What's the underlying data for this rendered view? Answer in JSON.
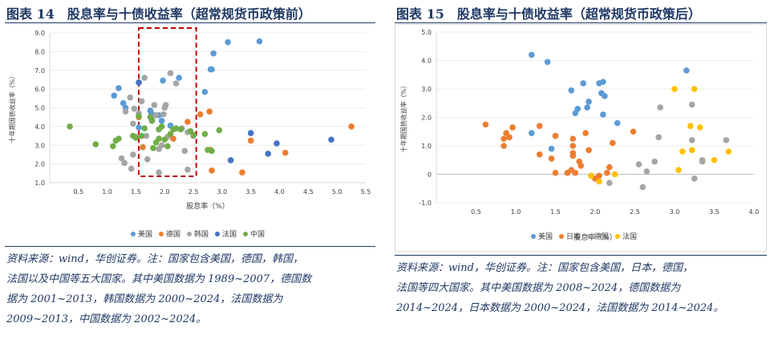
{
  "colors": {
    "us": "#5b9bd5",
    "de": "#ed7d31",
    "kr": "#a5a5a5",
    "fr": "#4472c4",
    "cn": "#70ad47",
    "jp": "#ed7d31",
    "fr2": "#ffc000",
    "title": "#1f3864",
    "dash": "#c00000"
  },
  "left": {
    "title": "图表 14　股息率与十债收益率（超常规货币政策前）",
    "source": [
      "资料来源：wind，华创证券。注：国家包含美国，德国，韩国，",
      "法国以及中国等五大国家。其中美国数据为 1989~2007，德国数",
      "据为 2001~2013，韩国数据为 2000~2024，法国数据为",
      "2009~2013，中国数据为 2002~2024。"
    ]
  },
  "right": {
    "title": "图表 15　股息率与十债收益率（超常规货币政策后）",
    "source": [
      "资料来源：wind，华创证券。注：国家包含美国，日本，德国，",
      "法国等四大国家。其中美国数据为 2008~2024，德国数据为",
      "2014~2024，日本数据为 2000~2024，法国数据为 2014~2024。"
    ]
  },
  "chart_data": [
    {
      "type": "scatter",
      "title": "股息率与十债收益率（超常规货币政策前）",
      "xlabel": "股息率（%）",
      "ylabel": "十年期国债收益率（%）",
      "xlim": [
        0,
        5.5
      ],
      "ylim": [
        1.0,
        9.0
      ],
      "xticks": [
        "0.5",
        "1.0",
        "1.5",
        "2.0",
        "2.5",
        "3.0",
        "3.5",
        "4.0",
        "4.5",
        "5.0",
        "5.5"
      ],
      "yticks": [
        "1.0",
        "2.0",
        "3.0",
        "4.0",
        "5.0",
        "6.0",
        "7.0",
        "8.0",
        "9.0"
      ],
      "highlight_range_x": [
        1.55,
        2.55
      ],
      "series": [
        {
          "name": "美国",
          "color": "#5b9bd5",
          "points": [
            [
              1.12,
              5.65
            ],
            [
              1.2,
              6.05
            ],
            [
              1.28,
              5.25
            ],
            [
              1.32,
              5.0
            ],
            [
              1.55,
              6.35
            ],
            [
              1.75,
              4.85
            ],
            [
              1.77,
              4.7
            ],
            [
              1.78,
              4.35
            ],
            [
              1.9,
              4.6
            ],
            [
              1.95,
              4.3
            ],
            [
              1.97,
              6.45
            ],
            [
              2.1,
              4.05
            ],
            [
              2.25,
              6.6
            ],
            [
              2.7,
              5.85
            ],
            [
              2.8,
              7.05
            ],
            [
              2.82,
              7.05
            ],
            [
              2.85,
              7.9
            ],
            [
              3.1,
              8.5
            ],
            [
              3.65,
              8.55
            ],
            [
              1.55,
              3.95
            ]
          ]
        },
        {
          "name": "德国",
          "color": "#ed7d31",
          "points": [
            [
              1.55,
              4.5
            ],
            [
              2.4,
              4.25
            ],
            [
              2.15,
              3.35
            ],
            [
              2.62,
              4.65
            ],
            [
              2.78,
              4.8
            ],
            [
              2.8,
              2.75
            ],
            [
              2.82,
              1.65
            ],
            [
              3.35,
              1.55
            ],
            [
              3.5,
              3.25
            ],
            [
              4.1,
              2.6
            ],
            [
              5.25,
              4.0
            ],
            [
              1.62,
              2.9
            ]
          ]
        },
        {
          "name": "韩国",
          "color": "#a5a5a5",
          "points": [
            [
              1.25,
              2.3
            ],
            [
              1.3,
              2.05
            ],
            [
              1.32,
              4.8
            ],
            [
              1.4,
              5.55
            ],
            [
              1.45,
              4.15
            ],
            [
              1.47,
              4.95
            ],
            [
              1.5,
              3.45
            ],
            [
              1.55,
              4.7
            ],
            [
              1.6,
              5.35
            ],
            [
              1.68,
              3.5
            ],
            [
              1.7,
              2.25
            ],
            [
              1.82,
              5.15
            ],
            [
              1.85,
              4.6
            ],
            [
              1.9,
              2.8
            ],
            [
              1.95,
              3.0
            ],
            [
              1.98,
              4.65
            ],
            [
              2.0,
              5.0
            ],
            [
              2.02,
              5.15
            ],
            [
              2.05,
              3.45
            ],
            [
              2.1,
              6.85
            ],
            [
              2.2,
              6.3
            ],
            [
              2.3,
              3.9
            ],
            [
              2.35,
              2.7
            ],
            [
              2.4,
              3.7
            ],
            [
              2.5,
              3.5
            ],
            [
              1.42,
              1.75
            ],
            [
              1.45,
              2.5
            ],
            [
              1.9,
              1.55
            ],
            [
              2.4,
              1.7
            ],
            [
              1.65,
              6.6
            ]
          ]
        },
        {
          "name": "法国",
          "color": "#4472c4",
          "points": [
            [
              3.5,
              3.65
            ],
            [
              3.8,
              2.55
            ],
            [
              3.95,
              3.1
            ],
            [
              4.9,
              3.3
            ],
            [
              3.15,
              2.2
            ],
            [
              1.55,
              6.35
            ]
          ]
        },
        {
          "name": "中国",
          "color": "#70ad47",
          "points": [
            [
              0.35,
              4.0
            ],
            [
              0.8,
              3.05
            ],
            [
              1.1,
              2.95
            ],
            [
              1.15,
              3.25
            ],
            [
              1.2,
              3.35
            ],
            [
              1.45,
              3.5
            ],
            [
              1.5,
              3.4
            ],
            [
              1.55,
              4.55
            ],
            [
              1.6,
              3.5
            ],
            [
              1.65,
              3.9
            ],
            [
              1.75,
              4.5
            ],
            [
              1.8,
              2.85
            ],
            [
              1.85,
              3.15
            ],
            [
              1.9,
              3.85
            ],
            [
              1.95,
              4.0
            ],
            [
              2.0,
              3.3
            ],
            [
              2.05,
              2.95
            ],
            [
              2.1,
              3.6
            ],
            [
              2.15,
              3.85
            ],
            [
              2.2,
              3.9
            ],
            [
              2.28,
              3.85
            ],
            [
              2.45,
              3.75
            ],
            [
              2.5,
              3.55
            ],
            [
              2.7,
              3.6
            ],
            [
              2.75,
              2.75
            ],
            [
              2.82,
              2.7
            ],
            [
              2.95,
              3.8
            ],
            [
              1.78,
              4.3
            ],
            [
              1.9,
              3.35
            ]
          ]
        }
      ]
    },
    {
      "type": "scatter",
      "title": "股息率与十债收益率（超常规货币政策后）",
      "xlabel": "股息率（%）",
      "ylabel": "十年期国债收益率（%）",
      "xlim": [
        0,
        4.0
      ],
      "ylim": [
        -1.0,
        5.0
      ],
      "xticks": [
        "0.5",
        "1.0",
        "1.5",
        "2.0",
        "2.5",
        "3.0",
        "3.5",
        "4.0"
      ],
      "yticks": [
        "-1.0",
        "0",
        "1.0",
        "2.0",
        "3.0",
        "4.0",
        "5.0"
      ],
      "series": [
        {
          "name": "美国",
          "color": "#5b9bd5",
          "points": [
            [
              1.2,
              4.2
            ],
            [
              1.4,
              3.95
            ],
            [
              1.45,
              0.9
            ],
            [
              1.2,
              1.45
            ],
            [
              1.7,
              2.95
            ],
            [
              1.75,
              2.15
            ],
            [
              1.78,
              2.3
            ],
            [
              1.85,
              3.2
            ],
            [
              1.9,
              2.35
            ],
            [
              1.92,
              2.55
            ],
            [
              2.05,
              3.2
            ],
            [
              2.08,
              2.85
            ],
            [
              2.1,
              3.25
            ],
            [
              2.1,
              2.1
            ],
            [
              2.12,
              2.75
            ],
            [
              2.28,
              1.8
            ],
            [
              3.15,
              3.65
            ]
          ]
        },
        {
          "name": "日本",
          "color": "#ed7d31",
          "points": [
            [
              0.62,
              1.75
            ],
            [
              0.85,
              1.0
            ],
            [
              0.85,
              1.25
            ],
            [
              0.88,
              1.45
            ],
            [
              0.92,
              1.3
            ],
            [
              0.96,
              1.65
            ],
            [
              1.3,
              1.7
            ],
            [
              1.3,
              0.7
            ],
            [
              1.45,
              0.55
            ],
            [
              1.5,
              0.05
            ],
            [
              1.5,
              1.35
            ],
            [
              1.65,
              0.05
            ],
            [
              1.7,
              0.15
            ],
            [
              1.72,
              0.75
            ],
            [
              1.72,
              0.65
            ],
            [
              1.72,
              1.0
            ],
            [
              1.72,
              1.25
            ],
            [
              1.75,
              0.05
            ],
            [
              1.8,
              0.45
            ],
            [
              1.82,
              0.3
            ],
            [
              1.88,
              1.45
            ],
            [
              1.92,
              0.85
            ],
            [
              1.95,
              -0.05
            ],
            [
              2.0,
              -0.15
            ],
            [
              2.05,
              -0.05
            ],
            [
              2.15,
              0.05
            ],
            [
              2.18,
              0.25
            ],
            [
              2.22,
              1.1
            ],
            [
              2.48,
              1.5
            ]
          ]
        },
        {
          "name": "德国",
          "color": "#a5a5a5",
          "points": [
            [
              2.18,
              -0.3
            ],
            [
              2.55,
              0.35
            ],
            [
              2.6,
              -0.45
            ],
            [
              2.65,
              0.1
            ],
            [
              2.75,
              0.45
            ],
            [
              2.8,
              1.3
            ],
            [
              2.82,
              2.35
            ],
            [
              3.22,
              2.45
            ],
            [
              3.22,
              1.2
            ],
            [
              3.25,
              -0.15
            ],
            [
              3.35,
              0.45
            ],
            [
              3.35,
              0.5
            ],
            [
              3.65,
              1.2
            ]
          ]
        },
        {
          "name": "法国",
          "color": "#ffc000",
          "points": [
            [
              2.25,
              0.0
            ],
            [
              2.05,
              -0.25
            ],
            [
              1.95,
              -0.05
            ],
            [
              3.0,
              3.0
            ],
            [
              3.05,
              0.15
            ],
            [
              3.1,
              0.8
            ],
            [
              3.2,
              1.7
            ],
            [
              3.22,
              0.85
            ],
            [
              3.25,
              3.0
            ],
            [
              3.32,
              1.65
            ],
            [
              3.5,
              0.5
            ],
            [
              3.68,
              0.8
            ]
          ]
        }
      ]
    }
  ]
}
